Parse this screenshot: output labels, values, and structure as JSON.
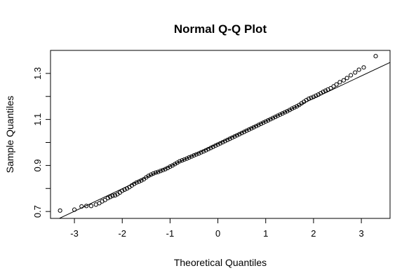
{
  "chart_data": {
    "type": "scatter",
    "title": "Normal Q-Q Plot",
    "xlabel": "Theoretical Quantiles",
    "ylabel": "Sample Quantiles",
    "xlim": [
      -3.5,
      3.6
    ],
    "ylim": [
      0.67,
      1.4
    ],
    "xticks": [
      "-3",
      "-2",
      "-1",
      "0",
      "1",
      "2",
      "3"
    ],
    "yticks": [
      "0.7",
      "0.9",
      "1.1",
      "1.3"
    ],
    "reference_line": {
      "intercept": 0.995,
      "slope": 0.098
    },
    "points": [
      [
        -3.3,
        0.704
      ],
      [
        -3.0,
        0.708
      ],
      [
        -2.85,
        0.722
      ],
      [
        -2.75,
        0.724
      ],
      [
        -2.65,
        0.724
      ],
      [
        -2.55,
        0.73
      ],
      [
        -2.48,
        0.736
      ],
      [
        -2.42,
        0.744
      ],
      [
        -2.36,
        0.75
      ],
      [
        -2.3,
        0.758
      ],
      [
        -2.25,
        0.763
      ],
      [
        -2.2,
        0.768
      ],
      [
        -2.15,
        0.77
      ],
      [
        -2.1,
        0.775
      ],
      [
        -2.05,
        0.782
      ],
      [
        -2.0,
        0.79
      ],
      [
        -1.95,
        0.795
      ],
      [
        -1.9,
        0.8
      ],
      [
        -1.85,
        0.806
      ],
      [
        -1.8,
        0.813
      ],
      [
        -1.75,
        0.82
      ],
      [
        -1.7,
        0.826
      ],
      [
        -1.65,
        0.83
      ],
      [
        -1.6,
        0.835
      ],
      [
        -1.55,
        0.84
      ],
      [
        -1.5,
        0.848
      ],
      [
        -1.45,
        0.855
      ],
      [
        -1.4,
        0.86
      ],
      [
        -1.35,
        0.865
      ],
      [
        -1.3,
        0.869
      ],
      [
        -1.25,
        0.872
      ],
      [
        -1.2,
        0.876
      ],
      [
        -1.15,
        0.88
      ],
      [
        -1.1,
        0.884
      ],
      [
        -1.05,
        0.889
      ],
      [
        -1.0,
        0.895
      ],
      [
        -0.95,
        0.9
      ],
      [
        -0.9,
        0.906
      ],
      [
        -0.85,
        0.912
      ],
      [
        -0.8,
        0.918
      ],
      [
        -0.75,
        0.922
      ],
      [
        -0.7,
        0.926
      ],
      [
        -0.65,
        0.93
      ],
      [
        -0.6,
        0.935
      ],
      [
        -0.55,
        0.939
      ],
      [
        -0.5,
        0.944
      ],
      [
        -0.45,
        0.948
      ],
      [
        -0.4,
        0.952
      ],
      [
        -0.35,
        0.957
      ],
      [
        -0.3,
        0.961
      ],
      [
        -0.25,
        0.966
      ],
      [
        -0.2,
        0.971
      ],
      [
        -0.15,
        0.976
      ],
      [
        -0.1,
        0.981
      ],
      [
        -0.05,
        0.986
      ],
      [
        0.0,
        0.991
      ],
      [
        0.05,
        0.996
      ],
      [
        0.1,
        1.001
      ],
      [
        0.15,
        1.006
      ],
      [
        0.2,
        1.011
      ],
      [
        0.25,
        1.016
      ],
      [
        0.3,
        1.021
      ],
      [
        0.35,
        1.026
      ],
      [
        0.4,
        1.031
      ],
      [
        0.45,
        1.036
      ],
      [
        0.5,
        1.041
      ],
      [
        0.55,
        1.046
      ],
      [
        0.6,
        1.051
      ],
      [
        0.65,
        1.056
      ],
      [
        0.7,
        1.061
      ],
      [
        0.75,
        1.066
      ],
      [
        0.8,
        1.071
      ],
      [
        0.85,
        1.076
      ],
      [
        0.9,
        1.081
      ],
      [
        0.95,
        1.086
      ],
      [
        1.0,
        1.091
      ],
      [
        1.05,
        1.096
      ],
      [
        1.1,
        1.101
      ],
      [
        1.15,
        1.106
      ],
      [
        1.2,
        1.111
      ],
      [
        1.25,
        1.116
      ],
      [
        1.3,
        1.121
      ],
      [
        1.35,
        1.126
      ],
      [
        1.4,
        1.131
      ],
      [
        1.45,
        1.136
      ],
      [
        1.5,
        1.141
      ],
      [
        1.55,
        1.147
      ],
      [
        1.6,
        1.152
      ],
      [
        1.65,
        1.157
      ],
      [
        1.7,
        1.163
      ],
      [
        1.75,
        1.17
      ],
      [
        1.8,
        1.177
      ],
      [
        1.85,
        1.184
      ],
      [
        1.9,
        1.19
      ],
      [
        1.95,
        1.194
      ],
      [
        2.0,
        1.198
      ],
      [
        2.05,
        1.203
      ],
      [
        2.1,
        1.208
      ],
      [
        2.15,
        1.214
      ],
      [
        2.2,
        1.22
      ],
      [
        2.25,
        1.225
      ],
      [
        2.3,
        1.23
      ],
      [
        2.36,
        1.236
      ],
      [
        2.42,
        1.244
      ],
      [
        2.48,
        1.252
      ],
      [
        2.55,
        1.262
      ],
      [
        2.63,
        1.27
      ],
      [
        2.7,
        1.28
      ],
      [
        2.78,
        1.292
      ],
      [
        2.87,
        1.304
      ],
      [
        2.95,
        1.316
      ],
      [
        3.05,
        1.326
      ],
      [
        3.3,
        1.375
      ]
    ]
  }
}
